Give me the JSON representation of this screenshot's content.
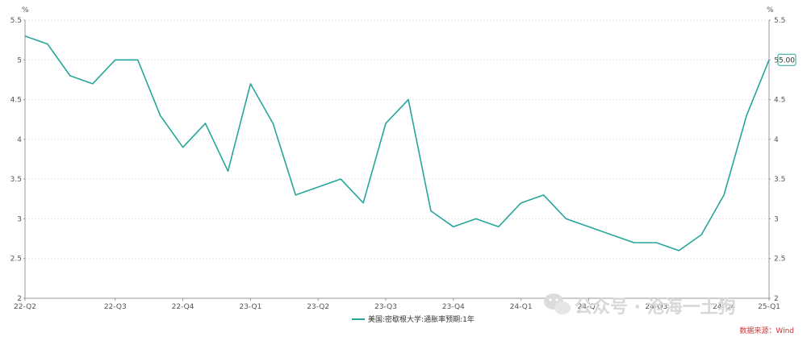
{
  "chart_data": {
    "type": "line",
    "y_unit_left": "%",
    "y_unit_right": "%",
    "ylim": [
      2,
      5.5
    ],
    "y_ticks": [
      2,
      2.5,
      3,
      3.5,
      4,
      4.5,
      5,
      5.5
    ],
    "y_tick_labels": [
      "2",
      "2.5",
      "3",
      "3.5",
      "4",
      "4.5",
      "5",
      "5.5"
    ],
    "x_tick_labels": [
      "22-Q2",
      "22-Q3",
      "22-Q4",
      "23-Q1",
      "23-Q2",
      "23-Q3",
      "23-Q4",
      "24-Q1",
      "24-Q2",
      "24-Q3",
      "24-Q4",
      "25-Q1"
    ],
    "grid": true,
    "legend_position": "bottom-center",
    "series": [
      {
        "name": "美国:密歇根大学:通胀率预期:1年",
        "color": "#26a69a",
        "points": [
          [
            "22-Q2",
            5.3
          ],
          [
            "",
            5.2
          ],
          [
            "",
            4.8
          ],
          [
            "",
            4.7
          ],
          [
            "22-Q3",
            5.0
          ],
          [
            "",
            5.0
          ],
          [
            "",
            4.3
          ],
          [
            "22-Q4",
            3.9
          ],
          [
            "",
            4.2
          ],
          [
            "",
            3.6
          ],
          [
            "23-Q1",
            4.7
          ],
          [
            "",
            4.2
          ],
          [
            "",
            3.3
          ],
          [
            "23-Q2",
            3.4
          ],
          [
            "",
            3.5
          ],
          [
            "",
            3.2
          ],
          [
            "23-Q3",
            4.2
          ],
          [
            "",
            4.5
          ],
          [
            "",
            3.1
          ],
          [
            "23-Q4",
            2.9
          ],
          [
            "",
            3.0
          ],
          [
            "",
            2.9
          ],
          [
            "24-Q1",
            3.2
          ],
          [
            "",
            3.3
          ],
          [
            "",
            3.0
          ],
          [
            "24-Q2",
            2.9
          ],
          [
            "",
            2.8
          ],
          [
            "",
            2.7
          ],
          [
            "24-Q3",
            2.7
          ],
          [
            "",
            2.6
          ],
          [
            "",
            2.8
          ],
          [
            "24-Q4",
            3.3
          ],
          [
            "",
            4.3
          ],
          [
            "25-Q1",
            5.0
          ]
        ]
      }
    ],
    "end_label": "5.00",
    "source_text": "数据来源：Wind",
    "watermark_text": "公众号 · 沧海一土狗"
  },
  "colors": {
    "line": "#26a69a",
    "grid": "#e6e6e6",
    "axis": "#999999",
    "source": "#d03030"
  }
}
